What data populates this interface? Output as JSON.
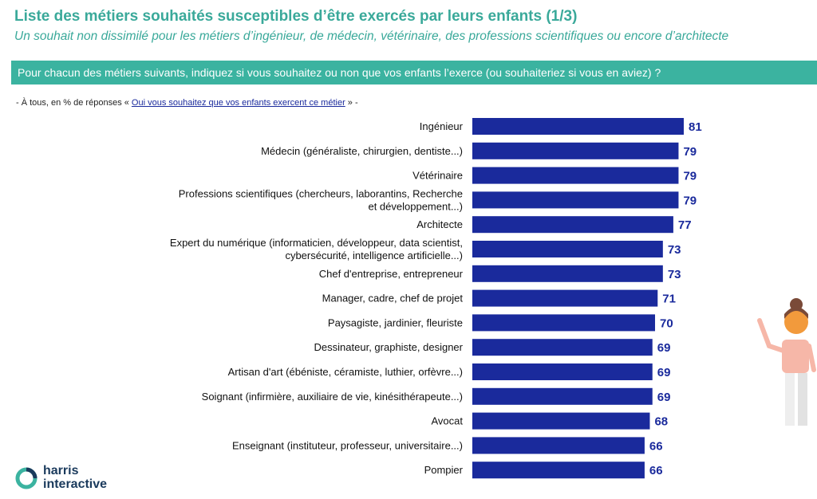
{
  "header": {
    "title": "Liste des métiers souhaités susceptibles d’être exercés par leurs enfants (1/3)",
    "subtitle": "Un souhait non dissimilé pour les métiers d’ingénieur, de médecin, vétérinaire, des professions scientifiques ou encore d’architecte"
  },
  "question": "Pour chacun des métiers suivants, indiquez si vous souhaitez ou non que vos enfants l’exerce (ou souhaiteriez si vous en aviez) ?",
  "base_note": {
    "prefix": "- À tous, en % de réponses « ",
    "link": "Oui vous souhaitez que vos enfants exercent ce métier",
    "suffix": " » -"
  },
  "logo": {
    "line1": "harris",
    "line2": "interactive"
  },
  "colors": {
    "accent": "#3bb3a0",
    "bar": "#1a2a9c",
    "value": "#1a2a9c"
  },
  "chart_data": {
    "type": "bar",
    "orientation": "horizontal",
    "categories": [
      [
        "Ingénieur"
      ],
      [
        "Médecin (généraliste, chirurgien, dentiste...)"
      ],
      [
        "Vétérinaire"
      ],
      [
        "Professions scientifiques (chercheurs, laborantins, Recherche",
        "et développement...)"
      ],
      [
        "Architecte"
      ],
      [
        "Expert du numérique (informaticien, développeur, data scientist,",
        "cybersécurité, intelligence artificielle...)"
      ],
      [
        "Chef d'entreprise, entrepreneur"
      ],
      [
        "Manager, cadre, chef de projet"
      ],
      [
        "Paysagiste, jardinier, fleuriste"
      ],
      [
        "Dessinateur, graphiste, designer"
      ],
      [
        "Artisan d'art (ébéniste, céramiste, luthier, orfèvre...)"
      ],
      [
        "Soignant (infirmière, auxiliaire de vie, kinésithérapeute...)"
      ],
      [
        "Avocat"
      ],
      [
        "Enseignant (instituteur, professeur, universitaire...)"
      ],
      [
        "Pompier"
      ]
    ],
    "values": [
      81,
      79,
      79,
      79,
      77,
      73,
      73,
      71,
      70,
      69,
      69,
      69,
      68,
      66,
      66
    ],
    "value_suffix": "",
    "xlim": [
      0,
      81
    ]
  }
}
